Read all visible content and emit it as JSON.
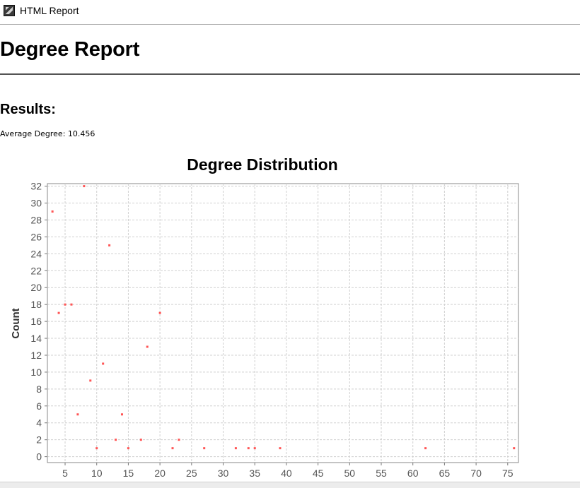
{
  "window": {
    "title": "HTML Report",
    "icon": "app-icon"
  },
  "report": {
    "title": "Degree Report",
    "results_heading": "Results:",
    "average_degree_label": "Average Degree: 10.456"
  },
  "chart_data": {
    "type": "scatter",
    "title": "Degree Distribution",
    "xlabel": "",
    "ylabel": "Count",
    "xlim": [
      2.2,
      76.7
    ],
    "ylim": [
      -0.7,
      32.3
    ],
    "x_ticks": [
      5,
      10,
      15,
      20,
      25,
      30,
      35,
      40,
      45,
      50,
      55,
      60,
      65,
      70,
      75
    ],
    "y_ticks": [
      0,
      2,
      4,
      6,
      8,
      10,
      12,
      14,
      16,
      18,
      20,
      22,
      24,
      26,
      28,
      30,
      32
    ],
    "grid": true,
    "legend": false,
    "marker_color": "#ff5555",
    "points": [
      {
        "x": 3,
        "y": 29
      },
      {
        "x": 4,
        "y": 17
      },
      {
        "x": 5,
        "y": 18
      },
      {
        "x": 6,
        "y": 18
      },
      {
        "x": 7,
        "y": 5
      },
      {
        "x": 8,
        "y": 32
      },
      {
        "x": 9,
        "y": 9
      },
      {
        "x": 10,
        "y": 1
      },
      {
        "x": 11,
        "y": 11
      },
      {
        "x": 12,
        "y": 25
      },
      {
        "x": 13,
        "y": 2
      },
      {
        "x": 14,
        "y": 5
      },
      {
        "x": 15,
        "y": 1
      },
      {
        "x": 17,
        "y": 2
      },
      {
        "x": 18,
        "y": 13
      },
      {
        "x": 20,
        "y": 17
      },
      {
        "x": 22,
        "y": 1
      },
      {
        "x": 23,
        "y": 2
      },
      {
        "x": 27,
        "y": 1
      },
      {
        "x": 32,
        "y": 1
      },
      {
        "x": 34,
        "y": 1
      },
      {
        "x": 35,
        "y": 1
      },
      {
        "x": 39,
        "y": 1
      },
      {
        "x": 62,
        "y": 1
      },
      {
        "x": 76,
        "y": 1
      }
    ]
  }
}
